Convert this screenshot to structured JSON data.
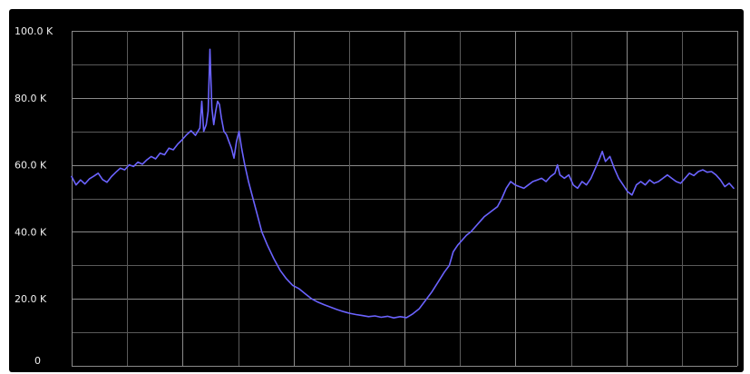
{
  "chart_data": {
    "type": "line",
    "title": "",
    "xlabel": "",
    "ylabel": "",
    "ylim": [
      0,
      100000
    ],
    "yticks": [
      {
        "value": 0,
        "label": "0"
      },
      {
        "value": 20000,
        "label": "20.0 K"
      },
      {
        "value": 40000,
        "label": "40.0 K"
      },
      {
        "value": 60000,
        "label": "60.0 K"
      },
      {
        "value": 80000,
        "label": "80.0 K"
      },
      {
        "value": 100000,
        "label": "100.0 K"
      }
    ],
    "xlim": [
      0,
      100
    ],
    "grid": true,
    "legend": "none",
    "colors": {
      "background": "#000000",
      "line": "#6b63ff",
      "grid": "#8a8a8a",
      "tick_text": "#f0f0f0"
    },
    "series": [
      {
        "values": [
          [
            0,
            56500
          ],
          [
            0.7,
            54000
          ],
          [
            1.4,
            55500
          ],
          [
            2.1,
            54300
          ],
          [
            2.8,
            55800
          ],
          [
            3.5,
            56600
          ],
          [
            4.2,
            57500
          ],
          [
            4.9,
            55600
          ],
          [
            5.6,
            54800
          ],
          [
            6.3,
            56500
          ],
          [
            7.0,
            57800
          ],
          [
            7.7,
            59000
          ],
          [
            8.4,
            58500
          ],
          [
            9.1,
            60000
          ],
          [
            9.8,
            59500
          ],
          [
            10.5,
            60800
          ],
          [
            11.2,
            60200
          ],
          [
            11.9,
            61500
          ],
          [
            12.6,
            62500
          ],
          [
            13.3,
            61800
          ],
          [
            14.0,
            63500
          ],
          [
            14.7,
            63000
          ],
          [
            15.4,
            65000
          ],
          [
            16.1,
            64500
          ],
          [
            16.8,
            66200
          ],
          [
            17.5,
            67500
          ],
          [
            18.2,
            69000
          ],
          [
            18.9,
            70200
          ],
          [
            19.6,
            68800
          ],
          [
            20.3,
            71000
          ],
          [
            20.6,
            79000
          ],
          [
            20.9,
            70000
          ],
          [
            21.3,
            72000
          ],
          [
            21.6,
            76000
          ],
          [
            21.9,
            94500
          ],
          [
            22.2,
            77000
          ],
          [
            22.5,
            72000
          ],
          [
            22.8,
            76000
          ],
          [
            23.1,
            79000
          ],
          [
            23.4,
            78000
          ],
          [
            23.7,
            74000
          ],
          [
            24.1,
            70000
          ],
          [
            24.5,
            69000
          ],
          [
            24.9,
            67000
          ],
          [
            25.3,
            65000
          ],
          [
            25.7,
            62000
          ],
          [
            26.1,
            67000
          ],
          [
            26.5,
            70000
          ],
          [
            26.9,
            65000
          ],
          [
            27.4,
            60000
          ],
          [
            28.0,
            55000
          ],
          [
            28.7,
            50000
          ],
          [
            29.4,
            45000
          ],
          [
            30.1,
            40000
          ],
          [
            31.0,
            36000
          ],
          [
            32.0,
            32000
          ],
          [
            33.0,
            28500
          ],
          [
            34.0,
            26000
          ],
          [
            35.0,
            24000
          ],
          [
            36.0,
            23000
          ],
          [
            37.0,
            21500
          ],
          [
            38.0,
            20000
          ],
          [
            39.0,
            19000
          ],
          [
            40.0,
            18200
          ],
          [
            41.0,
            17500
          ],
          [
            42.0,
            16800
          ],
          [
            43.0,
            16200
          ],
          [
            44.0,
            15700
          ],
          [
            45.0,
            15300
          ],
          [
            46.0,
            15000
          ],
          [
            47.0,
            14700
          ],
          [
            48.0,
            14900
          ],
          [
            49.0,
            14500
          ],
          [
            50.0,
            14800
          ],
          [
            51.0,
            14300
          ],
          [
            52.0,
            14700
          ],
          [
            53.0,
            14400
          ],
          [
            54.0,
            15500
          ],
          [
            55.0,
            17000
          ],
          [
            56.0,
            19500
          ],
          [
            57.0,
            22000
          ],
          [
            58.0,
            25000
          ],
          [
            59.0,
            28000
          ],
          [
            59.8,
            30000
          ],
          [
            60.4,
            34000
          ],
          [
            61.1,
            36000
          ],
          [
            61.8,
            37500
          ],
          [
            62.5,
            39000
          ],
          [
            63.2,
            40000
          ],
          [
            63.9,
            41500
          ],
          [
            64.6,
            43000
          ],
          [
            65.3,
            44500
          ],
          [
            66.0,
            45500
          ],
          [
            66.7,
            46500
          ],
          [
            67.4,
            47500
          ],
          [
            68.1,
            50000
          ],
          [
            68.8,
            53000
          ],
          [
            69.5,
            55000
          ],
          [
            70.2,
            54000
          ],
          [
            70.9,
            53500
          ],
          [
            71.6,
            53000
          ],
          [
            72.3,
            54000
          ],
          [
            73.0,
            55000
          ],
          [
            73.7,
            55500
          ],
          [
            74.4,
            56000
          ],
          [
            75.1,
            55000
          ],
          [
            75.8,
            56500
          ],
          [
            76.5,
            57500
          ],
          [
            76.9,
            60000
          ],
          [
            77.3,
            57000
          ],
          [
            78.0,
            56000
          ],
          [
            78.7,
            57000
          ],
          [
            79.4,
            54000
          ],
          [
            80.1,
            53000
          ],
          [
            80.8,
            55000
          ],
          [
            81.5,
            54000
          ],
          [
            82.2,
            56000
          ],
          [
            82.9,
            59000
          ],
          [
            83.6,
            62000
          ],
          [
            84.0,
            64000
          ],
          [
            84.5,
            61000
          ],
          [
            85.2,
            62500
          ],
          [
            85.9,
            59000
          ],
          [
            86.6,
            56000
          ],
          [
            87.3,
            54000
          ],
          [
            88.0,
            52000
          ],
          [
            88.7,
            51000
          ],
          [
            89.4,
            54000
          ],
          [
            90.1,
            55000
          ],
          [
            90.8,
            54000
          ],
          [
            91.5,
            55500
          ],
          [
            92.2,
            54500
          ],
          [
            92.9,
            55000
          ],
          [
            93.6,
            56000
          ],
          [
            94.3,
            57000
          ],
          [
            95.0,
            56000
          ],
          [
            95.7,
            55000
          ],
          [
            96.4,
            54500
          ],
          [
            97.1,
            56000
          ],
          [
            97.8,
            57500
          ],
          [
            98.5,
            56800
          ],
          [
            99.2,
            58000
          ],
          [
            99.9,
            58500
          ],
          [
            100.6,
            57800
          ],
          [
            101.3,
            58000
          ],
          [
            102.0,
            57000
          ],
          [
            102.7,
            55500
          ],
          [
            103.4,
            53500
          ],
          [
            104.1,
            54500
          ],
          [
            104.8,
            53000
          ]
        ]
      }
    ]
  }
}
